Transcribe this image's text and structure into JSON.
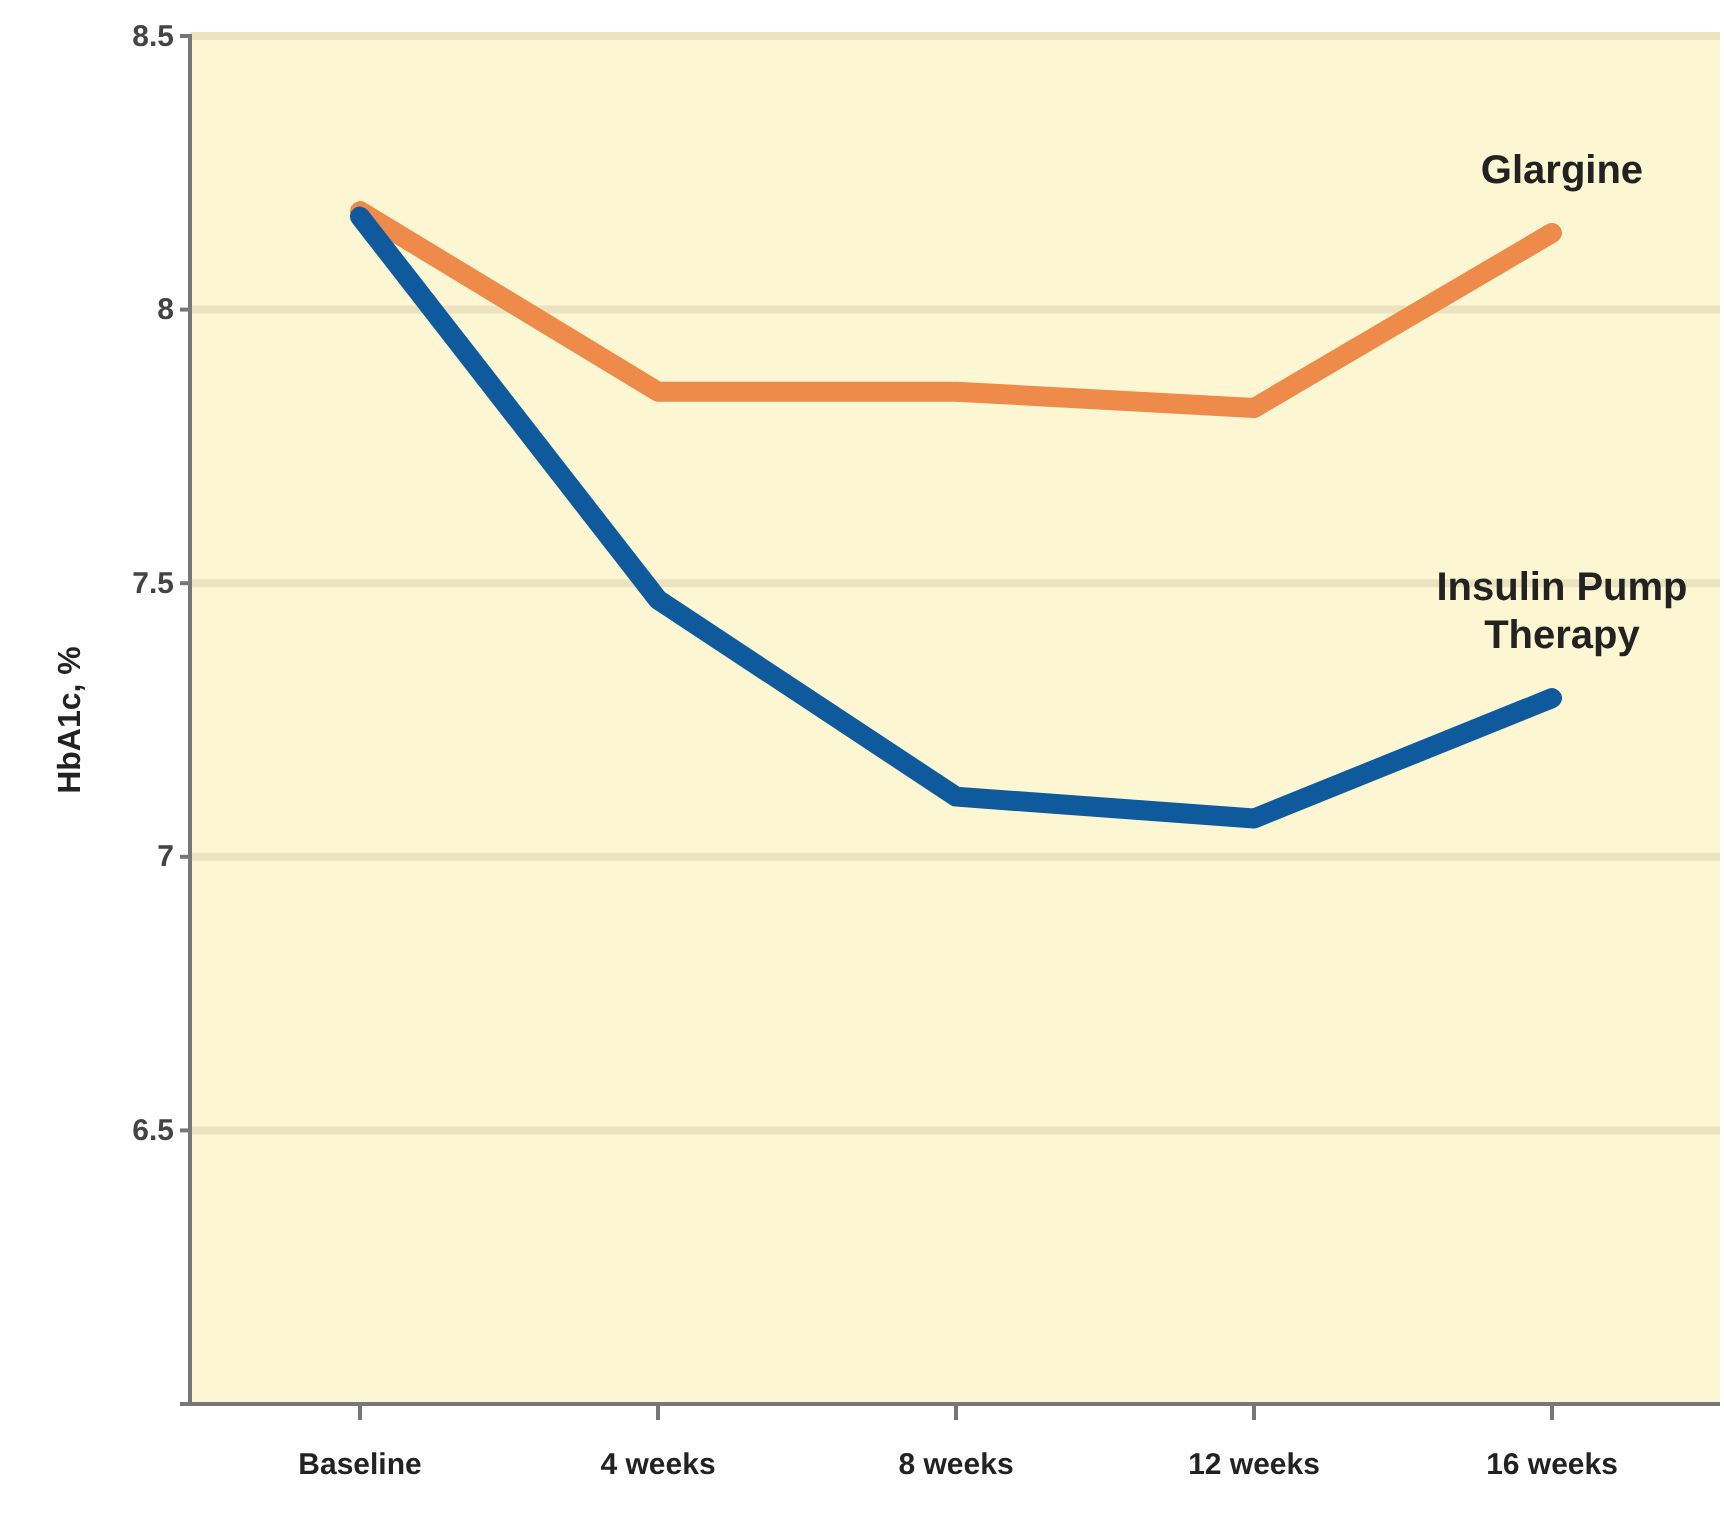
{
  "chart_data": {
    "type": "line",
    "ylabel": "HbA1c, %",
    "categories": [
      "Baseline",
      "4 weeks",
      "8 weeks",
      "12 weeks",
      "16 weeks"
    ],
    "series": [
      {
        "name": "Glargine",
        "color": "#ee8a4a",
        "values": [
          8.18,
          7.85,
          7.85,
          7.82,
          8.14
        ]
      },
      {
        "name": "Insulin Pump Therapy",
        "color": "#0f5a9c",
        "values": [
          8.17,
          7.47,
          7.11,
          7.07,
          7.29
        ]
      }
    ],
    "ylim": [
      6,
      8.5
    ],
    "yticks": [
      6.5,
      7,
      7.5,
      8,
      8.5
    ],
    "grid": "y",
    "legend": false,
    "marker": "none",
    "line_style": "solid"
  }
}
